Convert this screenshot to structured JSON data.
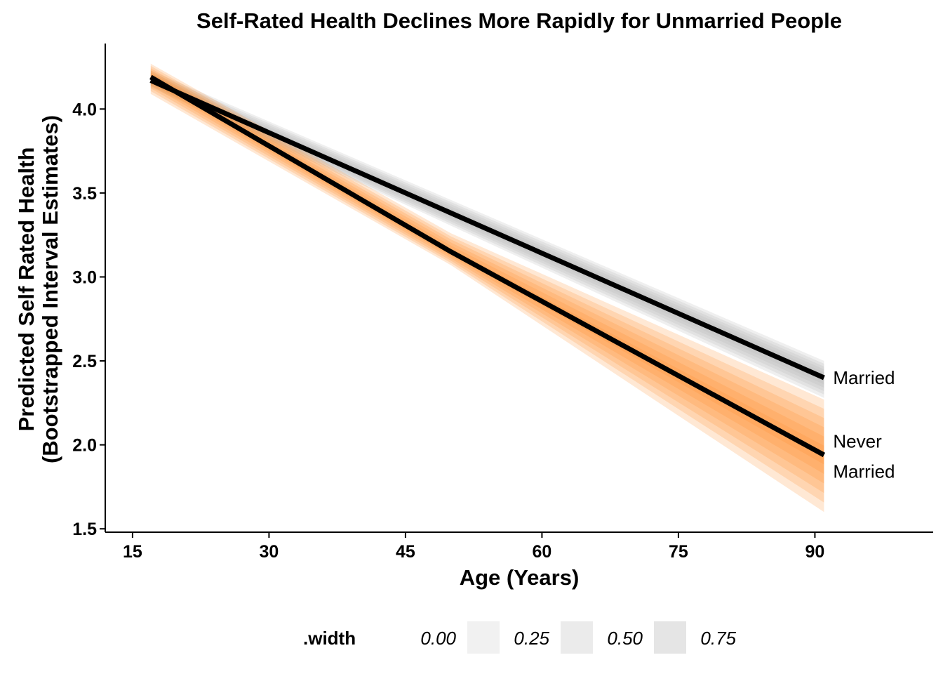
{
  "chart_data": {
    "type": "line",
    "title": "Self-Rated Health Declines More Rapidly for Unmarried People",
    "xlabel": "Age (Years)",
    "ylabel_lines": [
      "Predicted Self Rated Health",
      "(Bootstrapped Interval Estimates)"
    ],
    "xlim": [
      12,
      103
    ],
    "ylim": [
      1.48,
      4.39
    ],
    "x_ticks": [
      15,
      30,
      45,
      60,
      75,
      90
    ],
    "x_tick_labels": [
      "15",
      "30",
      "45",
      "60",
      "75",
      "90"
    ],
    "y_ticks": [
      1.5,
      2.0,
      2.5,
      3.0,
      3.5,
      4.0
    ],
    "y_tick_labels": [
      "1.5",
      "2.0",
      "2.5",
      "3.0",
      "3.5",
      "4.0"
    ],
    "grid": false,
    "series": [
      {
        "label_lines": [
          "Married"
        ],
        "x": [
          17,
          91
        ],
        "y": [
          4.17,
          2.4
        ],
        "line_color": "#000000",
        "band_color": "#b8b8b8",
        "band_x": [
          17,
          91
        ],
        "band_lower": [
          4.13,
          2.28
        ],
        "band_upper": [
          4.23,
          2.5
        ]
      },
      {
        "label_lines": [
          "Never",
          "Married"
        ],
        "x": [
          17,
          50,
          91
        ],
        "y": [
          4.19,
          3.15,
          1.94
        ],
        "line_color": "#000000",
        "band_color": "#ff8a2a",
        "band_x": [
          17,
          50,
          91
        ],
        "band_lower": [
          4.09,
          3.07,
          1.6
        ],
        "band_upper": [
          4.27,
          3.26,
          2.27
        ]
      }
    ],
    "legend": {
      "title": ".width",
      "position": "bottom",
      "entries": [
        {
          "label": "0.00",
          "color": "#f7f7f7"
        },
        {
          "label": "0.25",
          "color": "#f1f1f1"
        },
        {
          "label": "0.50",
          "color": "#ebebeb"
        },
        {
          "label": "0.75",
          "color": "#e5e5e5"
        }
      ]
    }
  }
}
